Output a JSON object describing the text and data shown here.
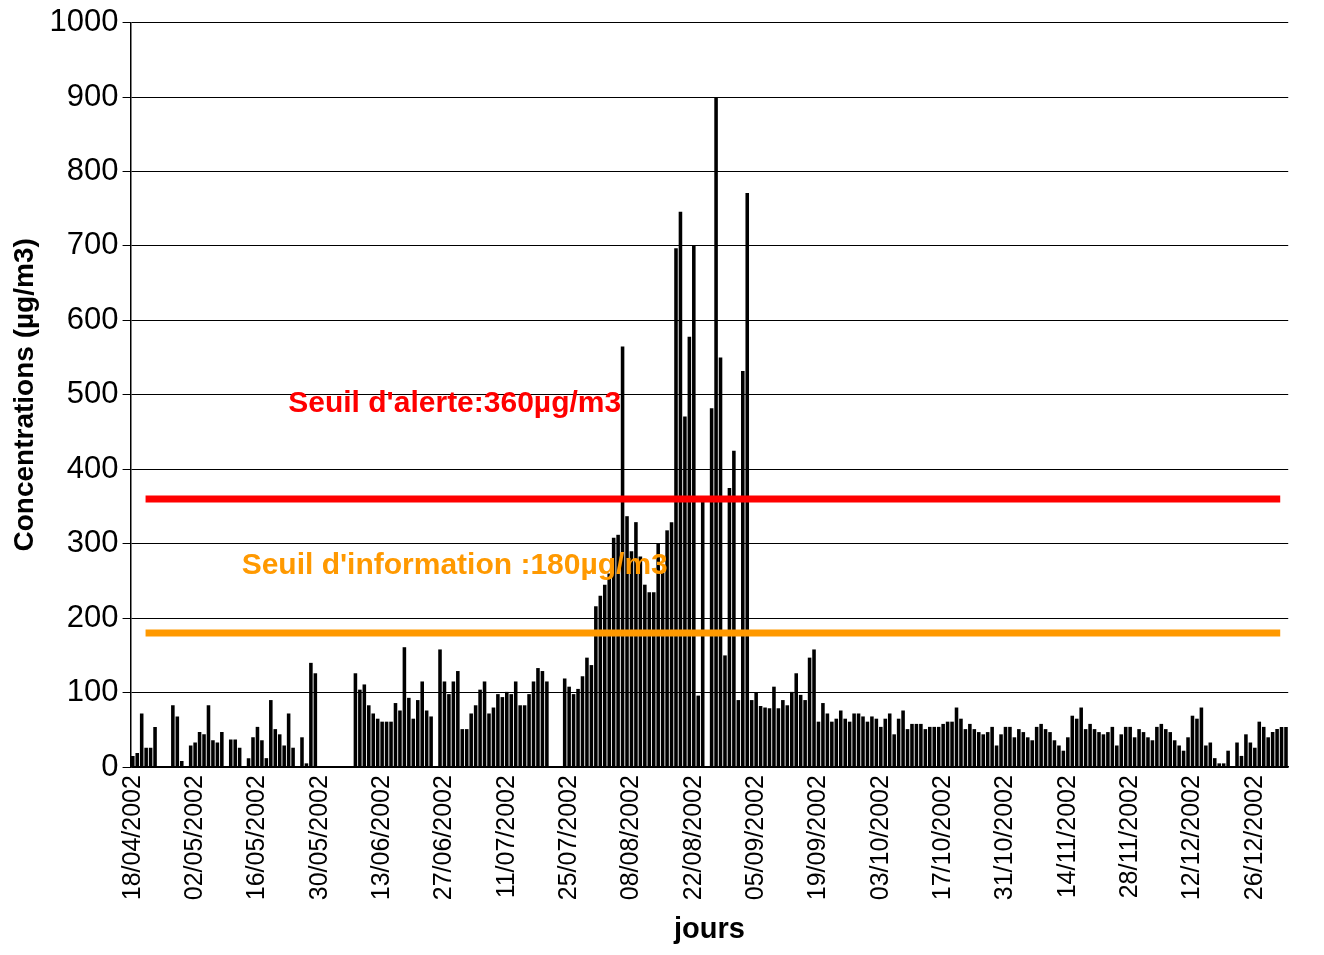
{
  "chart_data": {
    "type": "bar",
    "color": "#000000",
    "xlabel": "jours",
    "ylabel": "Concentrations (µg/m3)",
    "categories": [
      "18/04/2002",
      null,
      null,
      null,
      null,
      null,
      null,
      null,
      null,
      null,
      null,
      null,
      null,
      null,
      "02/05/2002",
      null,
      null,
      null,
      null,
      null,
      null,
      null,
      null,
      null,
      null,
      null,
      null,
      null,
      "16/05/2002",
      null,
      null,
      null,
      null,
      null,
      null,
      null,
      null,
      null,
      null,
      null,
      null,
      null,
      "30/05/2002",
      null,
      null,
      null,
      null,
      null,
      null,
      null,
      null,
      null,
      null,
      null,
      null,
      null,
      "13/06/2002",
      null,
      null,
      null,
      null,
      null,
      null,
      null,
      null,
      null,
      null,
      null,
      null,
      null,
      "27/06/2002",
      null,
      null,
      null,
      null,
      null,
      null,
      null,
      null,
      null,
      null,
      null,
      null,
      null,
      "11/07/2002",
      null,
      null,
      null,
      null,
      null,
      null,
      null,
      null,
      null,
      null,
      null,
      null,
      null,
      "25/07/2002",
      null,
      null,
      null,
      null,
      null,
      null,
      null,
      null,
      null,
      null,
      null,
      null,
      null,
      "08/08/2002",
      null,
      null,
      null,
      null,
      null,
      null,
      null,
      null,
      null,
      null,
      null,
      null,
      null,
      "22/08/2002",
      null,
      null,
      null,
      null,
      null,
      null,
      null,
      null,
      null,
      null,
      null,
      null,
      null,
      "05/09/2002",
      null,
      null,
      null,
      null,
      null,
      null,
      null,
      null,
      null,
      null,
      null,
      null,
      null,
      "19/09/2002",
      null,
      null,
      null,
      null,
      null,
      null,
      null,
      null,
      null,
      null,
      null,
      null,
      null,
      "03/10/2002",
      null,
      null,
      null,
      null,
      null,
      null,
      null,
      null,
      null,
      null,
      null,
      null,
      null,
      "17/10/2002",
      null,
      null,
      null,
      null,
      null,
      null,
      null,
      null,
      null,
      null,
      null,
      null,
      null,
      "31/10/2002",
      null,
      null,
      null,
      null,
      null,
      null,
      null,
      null,
      null,
      null,
      null,
      null,
      null,
      "14/11/2002",
      null,
      null,
      null,
      null,
      null,
      null,
      null,
      null,
      null,
      null,
      null,
      null,
      null,
      "28/11/2002",
      null,
      null,
      null,
      null,
      null,
      null,
      null,
      null,
      null,
      null,
      null,
      null,
      null,
      "12/12/2002",
      null,
      null,
      null,
      null,
      null,
      null,
      null,
      null,
      null,
      null,
      null,
      null,
      null,
      "26/12/2002",
      null,
      null,
      null,
      null,
      null,
      null,
      null
    ],
    "values": [
      15,
      19,
      72,
      26,
      26,
      54,
      null,
      null,
      null,
      83,
      68,
      8,
      null,
      29,
      33,
      47,
      44,
      83,
      36,
      33,
      47,
      null,
      37,
      37,
      26,
      null,
      12,
      40,
      54,
      36,
      12,
      90,
      51,
      44,
      29,
      72,
      26,
      null,
      40,
      5,
      140,
      126,
      null,
      null,
      null,
      null,
      null,
      null,
      null,
      null,
      126,
      104,
      111,
      83,
      72,
      65,
      61,
      61,
      61,
      86,
      76,
      161,
      93,
      65,
      90,
      115,
      76,
      68,
      null,
      158,
      115,
      98,
      115,
      129,
      51,
      51,
      72,
      83,
      104,
      115,
      72,
      80,
      98,
      94,
      101,
      98,
      115,
      83,
      83,
      98,
      115,
      133,
      129,
      115,
      null,
      null,
      null,
      119,
      108,
      98,
      105,
      122,
      147,
      137,
      216,
      230,
      245,
      260,
      308,
      312,
      565,
      337,
      290,
      329,
      283,
      245,
      235,
      235,
      301,
      261,
      318,
      329,
      697,
      746,
      471,
      578,
      700,
      96,
      357,
      null,
      482,
      900,
      550,
      150,
      375,
      425,
      90,
      532,
      771,
      90,
      100,
      82,
      80,
      79,
      108,
      79,
      90,
      83,
      101,
      126,
      97,
      90,
      147,
      158,
      61,
      86,
      72,
      61,
      65,
      76,
      65,
      61,
      72,
      72,
      68,
      61,
      68,
      65,
      54,
      65,
      72,
      44,
      65,
      76,
      51,
      58,
      58,
      58,
      51,
      54,
      54,
      54,
      58,
      61,
      61,
      80,
      65,
      51,
      58,
      51,
      47,
      44,
      47,
      54,
      29,
      44,
      54,
      54,
      40,
      51,
      47,
      40,
      36,
      54,
      58,
      51,
      47,
      36,
      29,
      22,
      40,
      69,
      65,
      80,
      51,
      58,
      51,
      47,
      44,
      47,
      54,
      29,
      44,
      54,
      54,
      40,
      51,
      47,
      40,
      36,
      54,
      58,
      51,
      47,
      36,
      29,
      22,
      40,
      69,
      65,
      80,
      29,
      33,
      12,
      5,
      5,
      22,
      0,
      33,
      15,
      44,
      33,
      26,
      61,
      54,
      40,
      47,
      51,
      54,
      54
    ],
    "ylim": [
      0,
      1000
    ],
    "yticks": [
      0,
      100,
      200,
      300,
      400,
      500,
      600,
      700,
      800,
      900,
      1000
    ],
    "grid": "y",
    "ref_lines": [
      {
        "axis": "y",
        "value": 360,
        "label": "Seuil d'alerte:360µg/m3",
        "color": "#ff0000"
      },
      {
        "axis": "y",
        "value": 180,
        "label": "Seuil d'information :180µg/m3",
        "color": "#ff9900"
      }
    ]
  }
}
